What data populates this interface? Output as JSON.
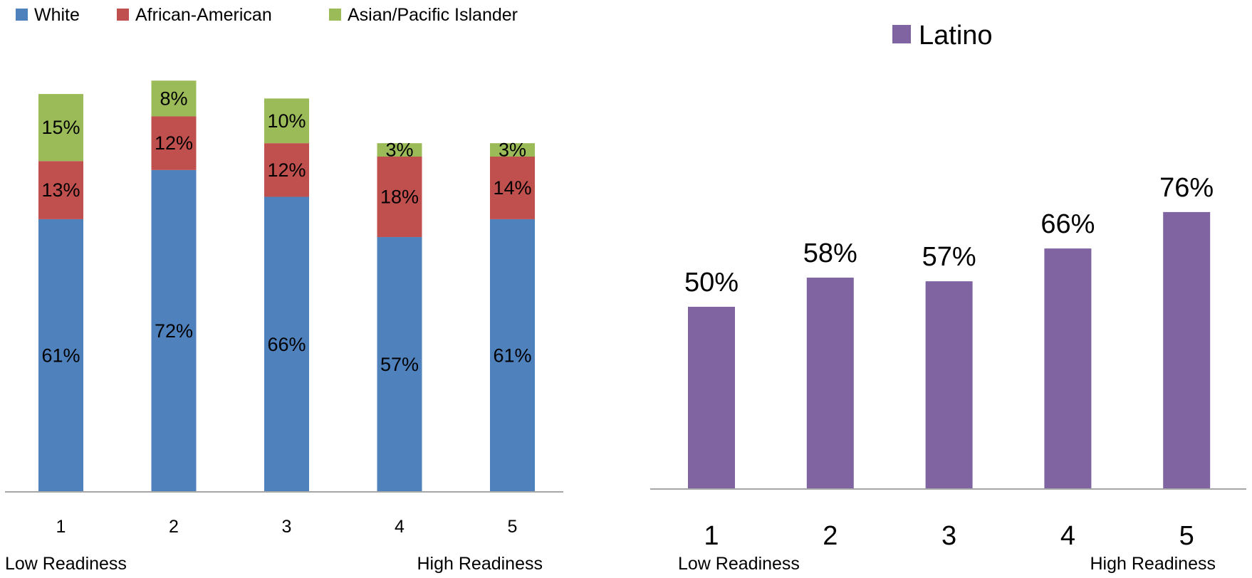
{
  "colors": {
    "white": "#4F81BD",
    "african_american": "#C0504D",
    "asian_pacific_islander": "#9BBB59",
    "latino": "#8064A2",
    "axis": "#A6A6A6",
    "text": "#000000"
  },
  "chart_data": [
    {
      "type": "bar",
      "stacked": true,
      "title": "",
      "categories": [
        "1",
        "2",
        "3",
        "4",
        "5"
      ],
      "series": [
        {
          "name": "White",
          "values": [
            61,
            72,
            66,
            57,
            61
          ],
          "labels": [
            "61%",
            "72%",
            "66%",
            "57%",
            "61%"
          ]
        },
        {
          "name": "African-American",
          "values": [
            13,
            12,
            12,
            18,
            14
          ],
          "labels": [
            "13%",
            "12%",
            "12%",
            "18%",
            "14%"
          ]
        },
        {
          "name": "Asian/Pacific Islander",
          "values": [
            15,
            8,
            10,
            3,
            3
          ],
          "labels": [
            "15%",
            "8%",
            "10%",
            "3%",
            "3%"
          ]
        }
      ],
      "ylim": [
        0,
        93
      ],
      "xlabel_left": "Low Readiness",
      "xlabel_right": "High Readiness",
      "legend_position": "top",
      "grid": false
    },
    {
      "type": "bar",
      "stacked": false,
      "title": "",
      "categories": [
        "1",
        "2",
        "3",
        "4",
        "5"
      ],
      "series": [
        {
          "name": "Latino",
          "values": [
            50,
            58,
            57,
            66,
            76
          ],
          "labels": [
            "50%",
            "58%",
            "57%",
            "66%",
            "76%"
          ]
        }
      ],
      "ylim": [
        0,
        120
      ],
      "xlabel_left": "Low Readiness",
      "xlabel_right": "High Readiness",
      "legend_position": "top",
      "grid": false
    }
  ]
}
